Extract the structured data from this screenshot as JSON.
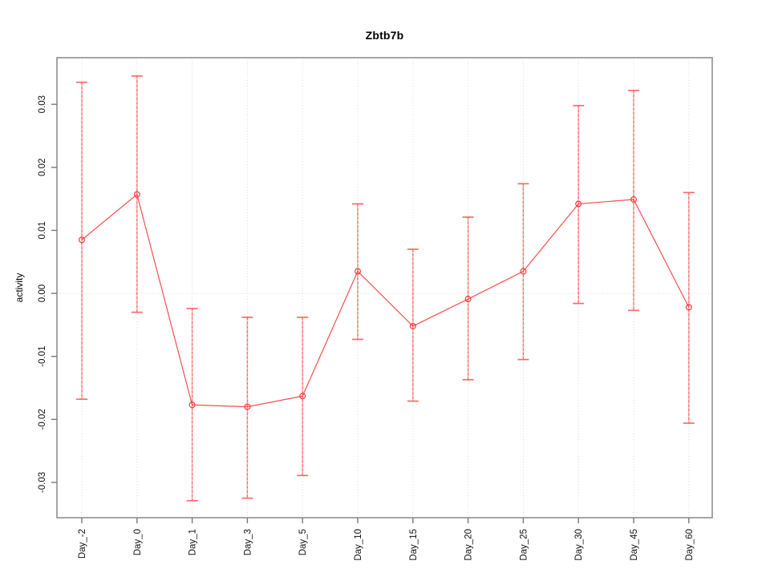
{
  "chart_data": {
    "type": "line",
    "title": "Zbtb7b",
    "xlabel": "",
    "ylabel": "activity",
    "categories": [
      "Day_-2",
      "Day_0",
      "Day_1",
      "Day_3",
      "Day_5",
      "Day_10",
      "Day_15",
      "Day_20",
      "Day_25",
      "Day_30",
      "Day_45",
      "Day_60"
    ],
    "series": [
      {
        "name": "activity",
        "values": [
          0.0085,
          0.0157,
          -0.0177,
          -0.018,
          -0.0163,
          0.0035,
          -0.0052,
          -0.0009,
          0.0035,
          0.0142,
          0.0149,
          -0.0022
        ],
        "error_upper": [
          0.0335,
          0.0345,
          -0.0024,
          -0.0038,
          -0.0038,
          0.0142,
          0.007,
          0.0121,
          0.0174,
          0.0298,
          0.0322,
          0.016
        ],
        "error_lower": [
          -0.0168,
          -0.003,
          -0.0329,
          -0.0325,
          -0.0289,
          -0.0073,
          -0.0171,
          -0.0137,
          -0.0105,
          -0.0016,
          -0.0027,
          -0.0206
        ]
      }
    ],
    "ylim": [
      -0.0356,
      0.0374
    ],
    "yticks": [
      -0.03,
      -0.02,
      -0.01,
      0,
      0.01,
      0.02,
      0.03
    ],
    "ytick_labels": [
      "-0.03",
      "-0.02",
      "-0.01",
      "0.00",
      "0.01",
      "0.02",
      "0.03"
    ],
    "grid": true,
    "legend": "none",
    "zero_line": 0,
    "colors": {
      "line": "#f43b3b",
      "point": "#f43b3b",
      "error_bar": "#ff5a5a",
      "grid": "#d9d9d9",
      "border": "#8f8f8f",
      "tick": "#7a7a7a",
      "text": "#111111",
      "background": "#ffffff"
    }
  }
}
